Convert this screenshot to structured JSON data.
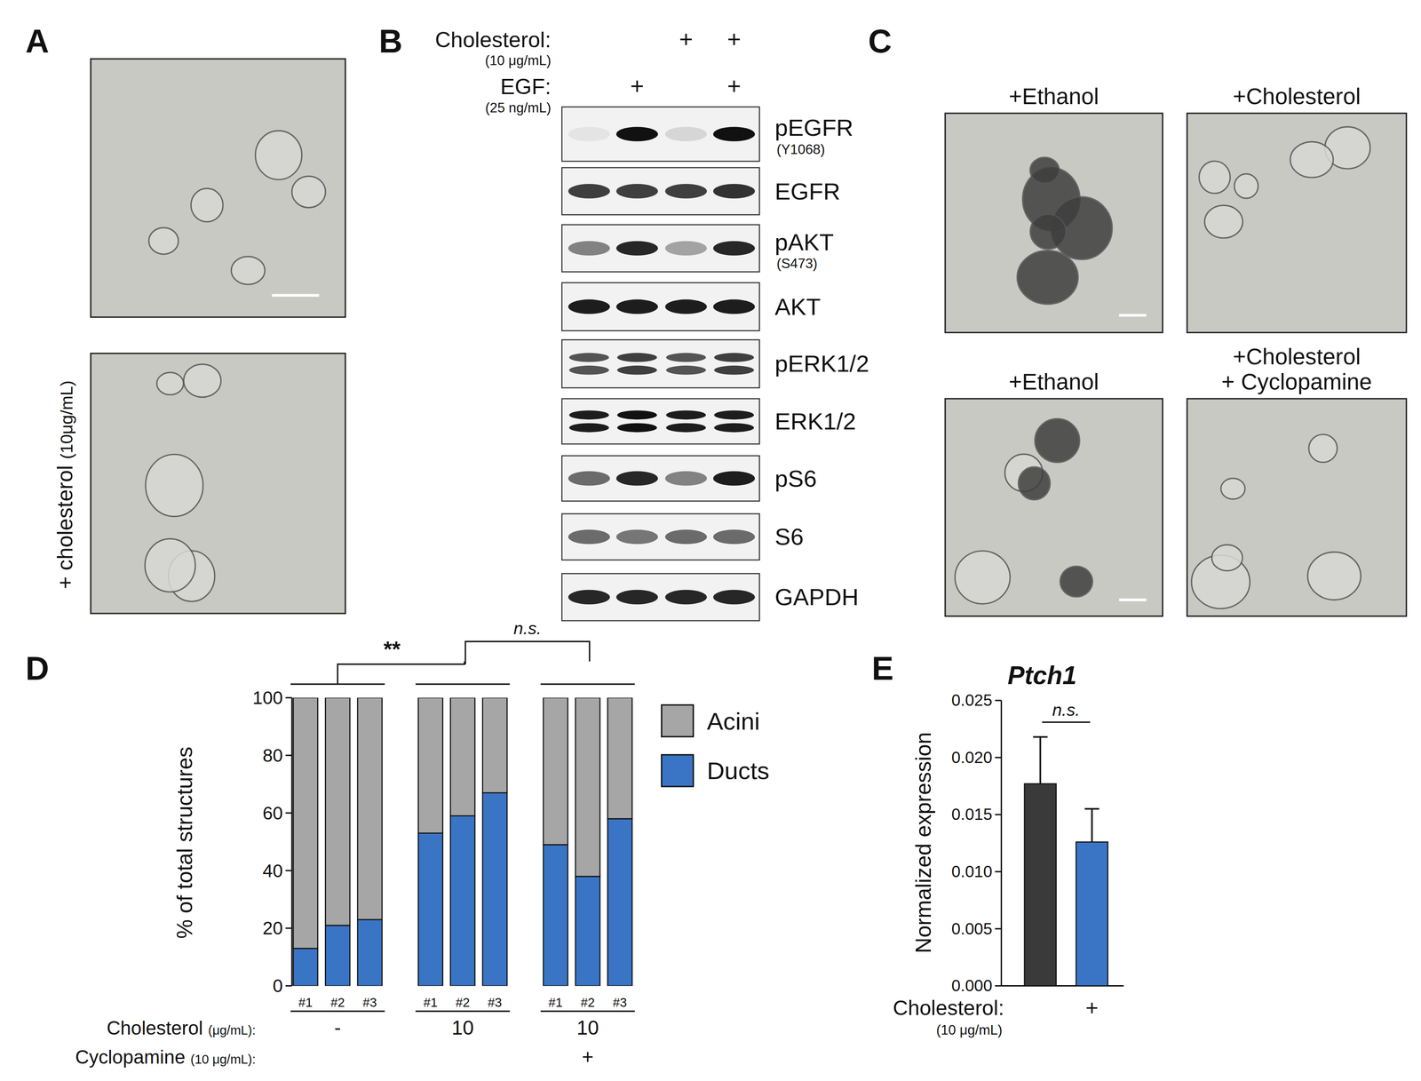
{
  "figure": {
    "panel_labels": [
      "A",
      "B",
      "C",
      "D",
      "E"
    ],
    "panel_a": {
      "label": "+ cholesterol",
      "unit": "(10μg/mL)"
    },
    "panel_b": {
      "treatments": [
        {
          "name": "Cholesterol:",
          "unit": "(10 μg/mL)",
          "lanes": [
            null,
            null,
            "+",
            "+"
          ]
        },
        {
          "name": "EGF:",
          "unit": "(25 ng/mL)",
          "lanes": [
            null,
            "+",
            null,
            "+"
          ]
        }
      ],
      "blots": [
        {
          "name": "pEGFR",
          "site": "(Y1068)",
          "intensity": [
            0.06,
            1,
            0.12,
            1
          ]
        },
        {
          "name": "EGFR",
          "intensity": [
            0.8,
            0.8,
            0.8,
            0.85
          ]
        },
        {
          "name": "pAKT",
          "site": "(S473)",
          "intensity": [
            0.5,
            0.9,
            0.35,
            0.9
          ]
        },
        {
          "name": "AKT",
          "intensity": [
            0.95,
            0.95,
            0.95,
            0.95
          ]
        },
        {
          "name": "pERK1/2",
          "doublet": true,
          "intensity": [
            0.7,
            0.8,
            0.7,
            0.8
          ]
        },
        {
          "name": "ERK1/2",
          "doublet": true,
          "intensity": [
            0.95,
            1,
            0.95,
            0.95
          ]
        },
        {
          "name": "pS6",
          "intensity": [
            0.6,
            0.9,
            0.5,
            0.95
          ]
        },
        {
          "name": "S6",
          "intensity": [
            0.6,
            0.55,
            0.6,
            0.6
          ]
        },
        {
          "name": "GAPDH",
          "intensity": [
            0.9,
            0.9,
            0.9,
            0.9
          ]
        }
      ]
    },
    "panel_c": {
      "images": [
        {
          "title": [
            "+Ethanol"
          ]
        },
        {
          "title": [
            "+Cholesterol"
          ]
        },
        {
          "title": [
            "+Ethanol"
          ]
        },
        {
          "title": [
            "+Cholesterol",
            "+ Cyclopamine"
          ]
        }
      ]
    }
  },
  "chart_data": [
    {
      "type": "bar",
      "stacked": true,
      "categories": [
        "#1",
        "#2",
        "#3",
        "#1",
        "#2",
        "#3",
        "#1",
        "#2",
        "#3"
      ],
      "series": [
        {
          "name": "Acini",
          "color": "#a6a6a6",
          "values": [
            87,
            79,
            77,
            47,
            41,
            33,
            51,
            62,
            42
          ]
        },
        {
          "name": "Ducts",
          "color": "#3a74c5",
          "values": [
            13,
            21,
            23,
            53,
            59,
            67,
            49,
            38,
            58
          ]
        }
      ],
      "ylim": [
        0,
        100
      ],
      "yticks": [
        0,
        20,
        40,
        60,
        80,
        100
      ],
      "y_label": "% of total structures",
      "legend": "upper right",
      "row_labels": [
        {
          "label": "Cholesterol",
          "unit": "(μg/mL):",
          "values": [
            "-",
            "10",
            "10"
          ]
        },
        {
          "label": "Cyclopamine",
          "unit": "(10 μg/mL):",
          "values": [
            null,
            null,
            "+"
          ]
        }
      ],
      "annotations": [
        "**",
        "n.s."
      ]
    },
    {
      "type": "bar",
      "title": "Ptch1",
      "categories": [
        null,
        "+"
      ],
      "values": [
        0.0177,
        0.0126
      ],
      "errors": [
        0.0041,
        0.0029
      ],
      "colors": [
        "#3a3a3a",
        "#3a74c5"
      ],
      "ylim": [
        0,
        0.025
      ],
      "yticks": [
        {
          "value": 0,
          "label": "0.000"
        },
        0.005,
        {
          "value": 0.01,
          "label": "0.010"
        },
        0.015,
        {
          "value": 0.02,
          "label": "0.020"
        },
        0.025
      ],
      "y_label": "Normalized expression",
      "x_label": "Cholesterol:",
      "x_label_unit": "(10 μg/mL)",
      "annotations": [
        "n.s."
      ]
    }
  ]
}
